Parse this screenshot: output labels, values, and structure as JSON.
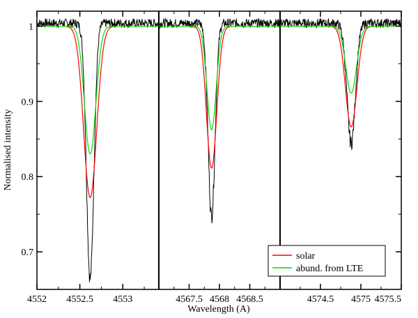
{
  "chart_data": {
    "type": "line",
    "title": "",
    "xlabel": "Wavelength (A)",
    "ylabel": "Normalised intensity",
    "ylim": [
      0.65,
      1.02
    ],
    "yticks": [
      0.7,
      0.8,
      0.9,
      1
    ],
    "ytick_labels": [
      "0.7",
      "0.8",
      "0.9",
      "1"
    ],
    "grid": false,
    "legend_position": "bottom-right",
    "legend": [
      {
        "name": "solar",
        "color": "#ff0000"
      },
      {
        "name": "abund. from LTE",
        "color": "#00dd00"
      }
    ],
    "observed_color": "#000000",
    "panels": [
      {
        "xlim": [
          4552.0,
          4553.42
        ],
        "xticks": [
          4552,
          4552.5,
          4553
        ],
        "xtick_labels": [
          "4552",
          "4552.5",
          "4553"
        ],
        "line_center": 4552.62,
        "series": [
          {
            "name": "observed",
            "min": 0.66,
            "width": 0.09
          },
          {
            "name": "solar",
            "min": 0.772,
            "width": 0.16
          },
          {
            "name": "abund. from LTE",
            "min": 0.83,
            "width": 0.14
          }
        ]
      },
      {
        "xlim": [
          4567.0,
          4569.0
        ],
        "xticks": [
          4567.5,
          4568,
          4568.5
        ],
        "xtick_labels": [
          "4567.5",
          "4568",
          "4568.5"
        ],
        "line_center": 4567.87,
        "series": [
          {
            "name": "observed",
            "min": 0.743,
            "width": 0.12
          },
          {
            "name": "solar",
            "min": 0.811,
            "width": 0.18
          },
          {
            "name": "abund. from LTE",
            "min": 0.862,
            "width": 0.16
          }
        ]
      },
      {
        "xlim": [
          4574.0,
          4575.5
        ],
        "xticks": [
          4574.5,
          4575,
          4575.5
        ],
        "xtick_labels": [
          "4574.5",
          "4575",
          "4575.5"
        ],
        "line_center": 4574.88,
        "series": [
          {
            "name": "observed",
            "min": 0.84,
            "width": 0.11
          },
          {
            "name": "solar",
            "min": 0.866,
            "width": 0.15
          },
          {
            "name": "abund. from LTE",
            "min": 0.911,
            "width": 0.14
          }
        ]
      }
    ]
  }
}
